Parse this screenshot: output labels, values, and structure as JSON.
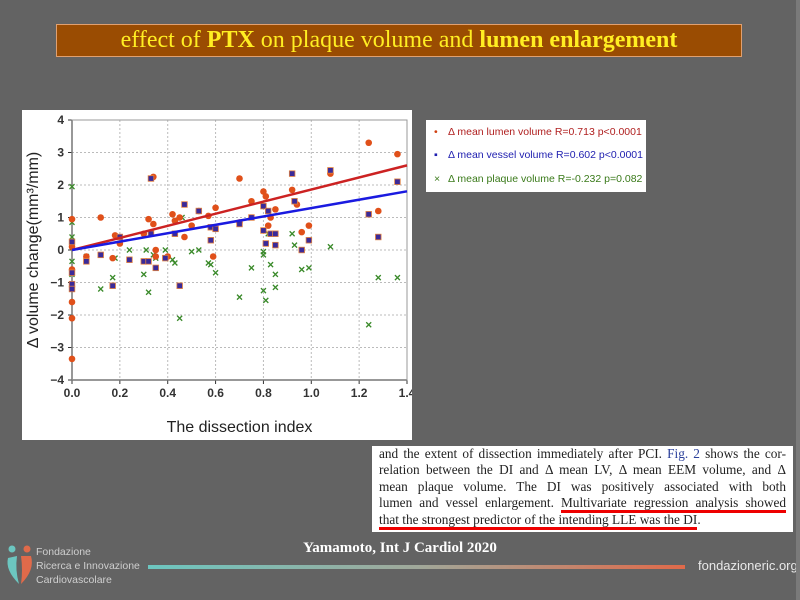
{
  "title": {
    "part1": "effect of ",
    "part2": "PTX",
    "part3": " on plaque volume and ",
    "part4": "lumen enlargement"
  },
  "legend": [
    {
      "label": "Δ mean lumen volume R=0.713 p<0.0001",
      "color": "#b02020",
      "marker": "•"
    },
    {
      "label": "Δ mean vessel volume R=0.602 p<0.0001",
      "color": "#2020b0",
      "marker": "▪"
    },
    {
      "label": "Δ mean plaque volume R=-0.232 p=0.082",
      "color": "#3a7a1a",
      "marker": "×"
    }
  ],
  "chart_data": {
    "type": "scatter",
    "xlabel": "The dissection index",
    "ylabel": "Δ volume change(mm³/mm)",
    "xlim": [
      0,
      1.4
    ],
    "ylim": [
      -4,
      4
    ],
    "xticks": [
      "0.0",
      "0.2",
      "0.4",
      "0.6",
      "0.8",
      "1.0",
      "1.2",
      "1.4"
    ],
    "yticks": [
      "4",
      "3",
      "2",
      "1",
      "0",
      "-1",
      "-2",
      "-3",
      "-4"
    ],
    "grid": true,
    "series": [
      {
        "name": "Δ mean lumen volume",
        "color": "#e0501a",
        "marker": "circle",
        "fit": [
          0.0,
          1.86
        ],
        "points": [
          [
            0,
            0.95
          ],
          [
            0,
            0.1
          ],
          [
            0,
            -0.6
          ],
          [
            0,
            -1.6
          ],
          [
            0,
            -2.1
          ],
          [
            0,
            -3.35
          ],
          [
            0.06,
            -0.2
          ],
          [
            0.12,
            1.0
          ],
          [
            0.17,
            -0.25
          ],
          [
            0.18,
            0.45
          ],
          [
            0.2,
            0.2
          ],
          [
            0.3,
            0.5
          ],
          [
            0.32,
            0.95
          ],
          [
            0.34,
            2.25
          ],
          [
            0.34,
            0.8
          ],
          [
            0.35,
            0
          ],
          [
            0.35,
            -0.2
          ],
          [
            0.4,
            -0.2
          ],
          [
            0.42,
            1.1
          ],
          [
            0.43,
            0.9
          ],
          [
            0.45,
            1.0
          ],
          [
            0.47,
            0.4
          ],
          [
            0.5,
            0.75
          ],
          [
            0.53,
            1.2
          ],
          [
            0.57,
            1.05
          ],
          [
            0.59,
            -0.2
          ],
          [
            0.6,
            1.3
          ],
          [
            0.7,
            2.2
          ],
          [
            0.7,
            0.85
          ],
          [
            0.75,
            1.5
          ],
          [
            0.8,
            1.8
          ],
          [
            0.81,
            1.65
          ],
          [
            0.82,
            0.75
          ],
          [
            0.83,
            1.0
          ],
          [
            0.85,
            1.25
          ],
          [
            0.92,
            1.85
          ],
          [
            0.94,
            1.4
          ],
          [
            0.96,
            0.55
          ],
          [
            0.99,
            0.75
          ],
          [
            1.08,
            2.35
          ],
          [
            1.24,
            3.3
          ],
          [
            1.28,
            1.2
          ],
          [
            1.36,
            2.95
          ]
        ]
      },
      {
        "name": "Δ mean vessel volume",
        "color": "#3a2a9a",
        "marker": "square",
        "fit": [
          0.0,
          1.29
        ],
        "points": [
          [
            0,
            0.25
          ],
          [
            0,
            -0.7
          ],
          [
            0,
            -1.05
          ],
          [
            0,
            -1.2
          ],
          [
            0.06,
            -0.35
          ],
          [
            0.12,
            -0.15
          ],
          [
            0.17,
            -1.1
          ],
          [
            0.2,
            0.4
          ],
          [
            0.24,
            -0.3
          ],
          [
            0.3,
            -0.35
          ],
          [
            0.32,
            -0.35
          ],
          [
            0.33,
            2.2
          ],
          [
            0.33,
            0.5
          ],
          [
            0.35,
            -0.55
          ],
          [
            0.39,
            -0.25
          ],
          [
            0.43,
            0.5
          ],
          [
            0.45,
            -1.1
          ],
          [
            0.47,
            1.4
          ],
          [
            0.53,
            1.2
          ],
          [
            0.58,
            0.3
          ],
          [
            0.58,
            0.7
          ],
          [
            0.6,
            0.65
          ],
          [
            0.7,
            0.8
          ],
          [
            0.75,
            1.0
          ],
          [
            0.8,
            1.35
          ],
          [
            0.8,
            0.6
          ],
          [
            0.81,
            0.2
          ],
          [
            0.82,
            1.2
          ],
          [
            0.83,
            0.5
          ],
          [
            0.85,
            0.5
          ],
          [
            0.85,
            0.15
          ],
          [
            0.92,
            2.35
          ],
          [
            0.93,
            1.5
          ],
          [
            0.96,
            0
          ],
          [
            0.99,
            0.3
          ],
          [
            1.08,
            2.45
          ],
          [
            1.24,
            1.1
          ],
          [
            1.28,
            0.4
          ],
          [
            1.36,
            2.1
          ]
        ]
      },
      {
        "name": "Δ mean plaque volume",
        "color": "#3a8a2a",
        "marker": "cross",
        "points": [
          [
            0,
            1.95
          ],
          [
            0,
            0.85
          ],
          [
            0,
            0.4
          ],
          [
            0,
            -0.35
          ],
          [
            0,
            -0.75
          ],
          [
            0.06,
            -0.2
          ],
          [
            0.12,
            -1.2
          ],
          [
            0.17,
            -0.85
          ],
          [
            0.18,
            -0.25
          ],
          [
            0.24,
            0
          ],
          [
            0.3,
            -0.75
          ],
          [
            0.31,
            0
          ],
          [
            0.32,
            -1.3
          ],
          [
            0.34,
            -0.15
          ],
          [
            0.35,
            -0.25
          ],
          [
            0.39,
            0
          ],
          [
            0.42,
            -0.3
          ],
          [
            0.43,
            -0.4
          ],
          [
            0.45,
            -2.1
          ],
          [
            0.46,
            1.0
          ],
          [
            0.5,
            -0.05
          ],
          [
            0.53,
            0
          ],
          [
            0.57,
            -0.4
          ],
          [
            0.58,
            -0.45
          ],
          [
            0.6,
            -0.7
          ],
          [
            0.7,
            -1.45
          ],
          [
            0.75,
            -0.55
          ],
          [
            0.8,
            -0.05
          ],
          [
            0.8,
            -0.15
          ],
          [
            0.8,
            -1.25
          ],
          [
            0.81,
            -1.55
          ],
          [
            0.82,
            0.5
          ],
          [
            0.83,
            -0.45
          ],
          [
            0.85,
            -0.75
          ],
          [
            0.85,
            -1.15
          ],
          [
            0.92,
            0.5
          ],
          [
            0.93,
            0.15
          ],
          [
            0.96,
            -0.6
          ],
          [
            0.99,
            -0.55
          ],
          [
            1.08,
            0.1
          ],
          [
            1.24,
            -2.3
          ],
          [
            1.28,
            -0.85
          ],
          [
            1.36,
            -0.85
          ]
        ]
      }
    ],
    "fit_colors": [
      "#cc2222",
      "#1a1ae0"
    ]
  },
  "excerpt": {
    "line1a": "and the extent of dissection immediately after PCI. ",
    "line1_link": "Fig. 2",
    "line1b": " shows the cor-",
    "line2": "relation between the DI and Δ mean LV, Δ mean EEM volume, and Δ",
    "line3": "mean plaque volume. The DI was positively associated with both",
    "line4a": "lumen and vessel enlargement. ",
    "line4b": "Multivariate regression analysis showed",
    "line5a": "that the strongest predictor of the intending LLE was the DI",
    "line5b": "."
  },
  "citation": "Yamamoto, Int J Cardiol 2020",
  "footer": {
    "org_line1": "Fondazione",
    "org_line2": "Ricerca e Innovazione",
    "org_line3": "Cardiovascolare",
    "website": "fondazioneric.org"
  }
}
